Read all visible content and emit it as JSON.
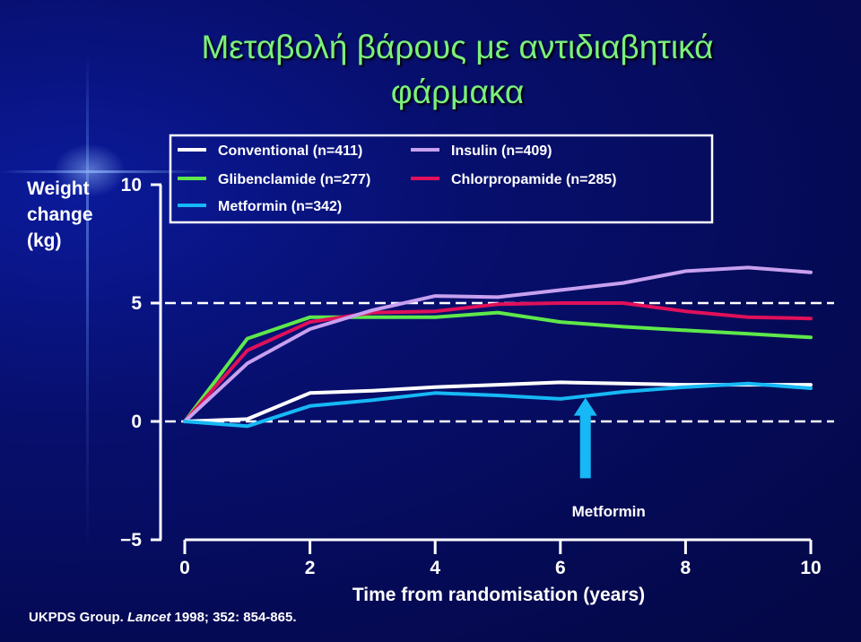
{
  "title_line1": "Μεταβολή βάρους με αντιδιαβητικά",
  "title_line2": "φάρμακα",
  "ylabel_lines": [
    "Weight",
    "change",
    "(kg)"
  ],
  "source": {
    "prefix": "UKPDS Group. ",
    "journal": "Lancet",
    "suffix": " 1998; 352: 854-865."
  },
  "colors": {
    "background": "#060c5e",
    "title": "#7cf07a",
    "conventional": "#ffffff",
    "glibenclamide": "#5ee84a",
    "metformin": "#16b8f5",
    "insulin": "#c8a0f0",
    "chlorpropamide": "#e0105a",
    "arrow": "#16b8f5"
  },
  "chart_data": {
    "type": "line",
    "xlabel": "Time from randomisation (years)",
    "ylabel": "Weight change (kg)",
    "xlim": [
      0,
      10
    ],
    "ylim": [
      -5,
      10
    ],
    "xticks": [
      "0",
      "2",
      "4",
      "6",
      "8",
      "10"
    ],
    "yticks": [
      "10",
      "5",
      "0",
      "−5"
    ],
    "reference_lines": [
      5,
      0
    ],
    "legend_position": "top",
    "series": [
      {
        "name": "Conventional (n=411)",
        "color_key": "conventional",
        "x": [
          0,
          1,
          2,
          3,
          4,
          5,
          6,
          7,
          8,
          9,
          10
        ],
        "y": [
          0,
          0.1,
          1.2,
          1.3,
          1.45,
          1.55,
          1.65,
          1.6,
          1.55,
          1.55,
          1.55
        ]
      },
      {
        "name": "Glibenclamide (n=277)",
        "color_key": "glibenclamide",
        "x": [
          0,
          1,
          2,
          3,
          4,
          5,
          6,
          7,
          8,
          9,
          10
        ],
        "y": [
          0,
          3.5,
          4.4,
          4.4,
          4.4,
          4.6,
          4.2,
          4.0,
          3.85,
          3.7,
          3.55
        ]
      },
      {
        "name": "Metformin (n=342)",
        "color_key": "metformin",
        "x": [
          0,
          1,
          2,
          3,
          4,
          5,
          6,
          7,
          8,
          9,
          10
        ],
        "y": [
          0,
          -0.2,
          0.65,
          0.9,
          1.2,
          1.1,
          0.95,
          1.25,
          1.45,
          1.6,
          1.4
        ]
      },
      {
        "name": "Insulin (n=409)",
        "color_key": "insulin",
        "x": [
          0,
          1,
          2,
          3,
          4,
          5,
          6,
          7,
          8,
          9,
          10
        ],
        "y": [
          0,
          2.45,
          3.9,
          4.7,
          5.3,
          5.25,
          5.55,
          5.85,
          6.35,
          6.5,
          6.3
        ]
      },
      {
        "name": "Chlorpropamide (n=285)",
        "color_key": "chlorpropamide",
        "x": [
          0,
          1,
          2,
          3,
          4,
          5,
          6,
          7,
          8,
          9,
          10
        ],
        "y": [
          0,
          3.0,
          4.2,
          4.6,
          4.65,
          4.95,
          5.0,
          5.0,
          4.65,
          4.4,
          4.35
        ]
      }
    ],
    "annotation": {
      "text": "Metformin",
      "x": 6.4,
      "y_from": -2.4,
      "y_to": 1.0
    }
  }
}
